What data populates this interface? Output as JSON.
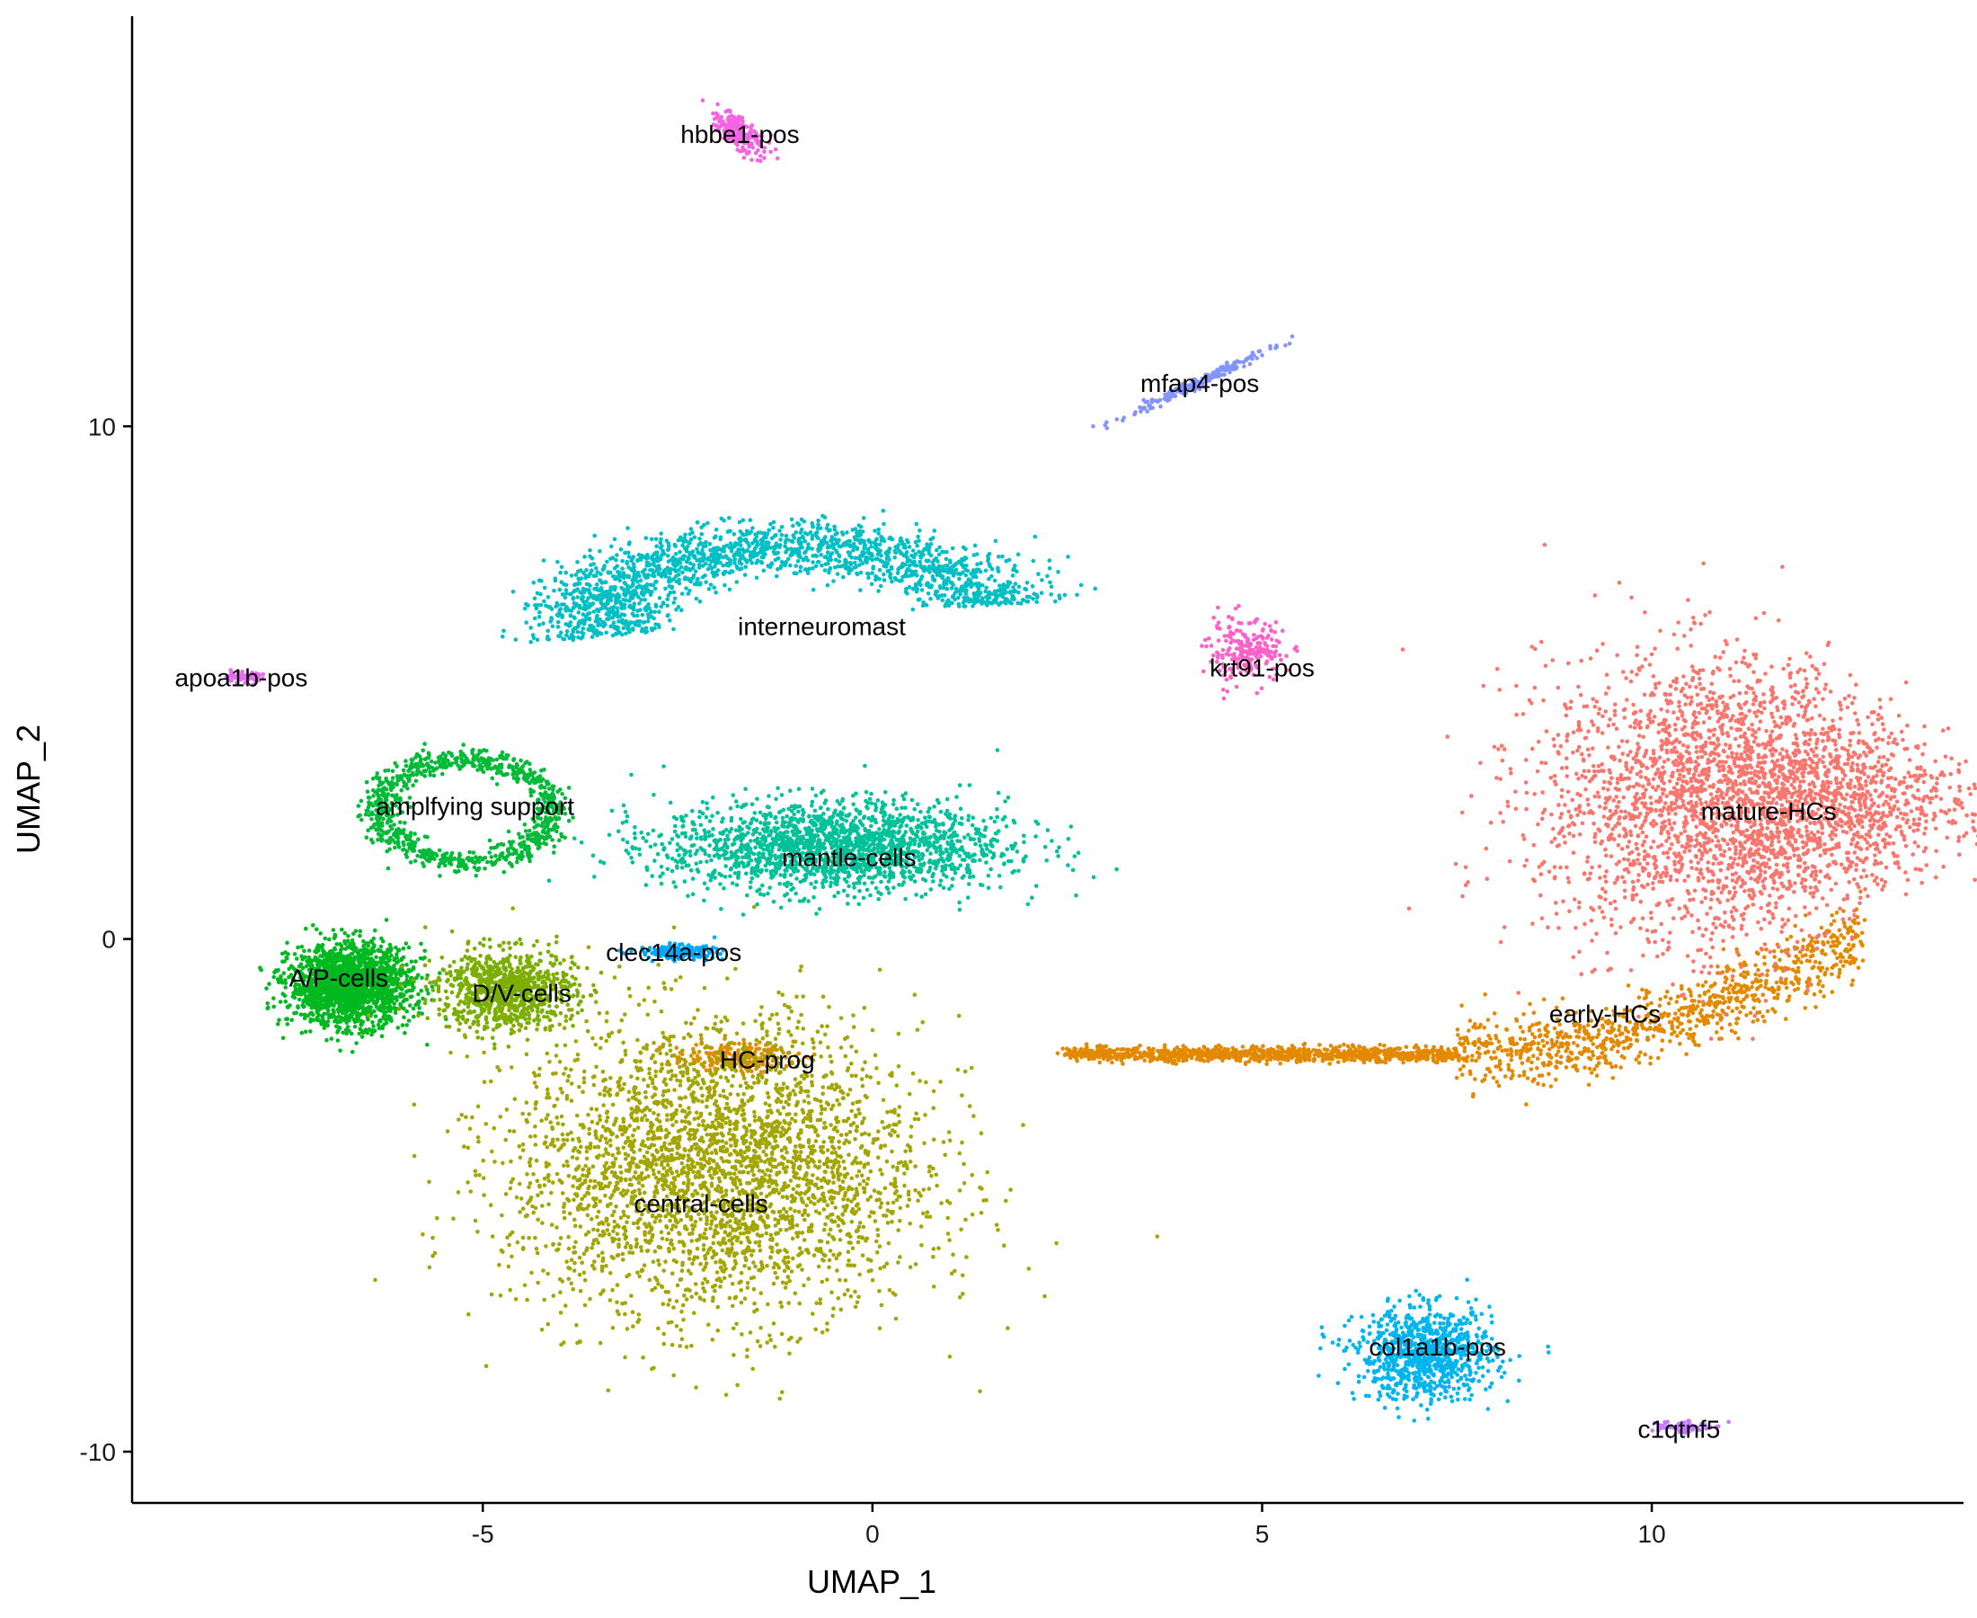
{
  "chart_data": {
    "type": "scatter",
    "title": "",
    "xlabel": "UMAP_1",
    "ylabel": "UMAP_2",
    "xlim": [
      -9.5,
      14
    ],
    "ylim": [
      -11,
      18
    ],
    "xticks": [
      "-5",
      "0",
      "5",
      "10"
    ],
    "xtick_values": [
      -5,
      0,
      5,
      10
    ],
    "yticks": [
      "-10",
      "0",
      "10"
    ],
    "ytick_values": [
      -10,
      0,
      10
    ],
    "grid": false,
    "legend": "none",
    "clusters": [
      {
        "name": "hbbe1-pos",
        "color": "#F564E3",
        "center": [
          -1.7,
          15.7
        ],
        "spread": [
          0.25,
          0.35
        ],
        "label_pos": [
          -1.7,
          15.7
        ],
        "shape": "streak",
        "angle_deg": -55,
        "density": "small"
      },
      {
        "name": "mfap4-pos",
        "color": "#8494FF",
        "center": [
          4.1,
          10.8
        ],
        "spread": [
          0.55,
          0.15
        ],
        "label_pos": [
          4.2,
          10.85
        ],
        "shape": "streak",
        "angle_deg": 35,
        "density": "small"
      },
      {
        "name": "krt91-pos",
        "color": "#FF61C9",
        "center": [
          4.8,
          5.6
        ],
        "spread": [
          0.45,
          0.55
        ],
        "label_pos": [
          5.0,
          5.3
        ],
        "shape": "blob",
        "angle_deg": 0,
        "density": "small"
      },
      {
        "name": "apoa1b-pos",
        "color": "#E76BF3",
        "center": [
          -8.1,
          5.1
        ],
        "spread": [
          0.25,
          0.1
        ],
        "label_pos": [
          -8.1,
          5.1
        ],
        "shape": "blob",
        "angle_deg": 0,
        "density": "tiny"
      },
      {
        "name": "interneuromast",
        "color": "#00BFC4",
        "center": [
          -1.0,
          6.2
        ],
        "spread": [
          2.6,
          1.6
        ],
        "label_pos": [
          -0.65,
          6.1
        ],
        "shape": "arc",
        "angle_deg": 0,
        "density": "large"
      },
      {
        "name": "mantle-cells",
        "color": "#00C19A",
        "center": [
          -0.5,
          1.8
        ],
        "spread": [
          2.0,
          0.8
        ],
        "label_pos": [
          -0.3,
          1.6
        ],
        "shape": "blob",
        "angle_deg": 0,
        "density": "large"
      },
      {
        "name": "amplfying support",
        "color": "#00BA38",
        "center": [
          -5.2,
          2.5
        ],
        "spread": [
          1.1,
          1.0
        ],
        "label_pos": [
          -5.1,
          2.6
        ],
        "shape": "loop",
        "angle_deg": 0,
        "density": "medium"
      },
      {
        "name": "A/P-cells",
        "color": "#00B81F",
        "center": [
          -6.7,
          -0.9
        ],
        "spread": [
          0.7,
          0.7
        ],
        "label_pos": [
          -6.85,
          -0.75
        ],
        "shape": "blob",
        "angle_deg": 0,
        "density": "large"
      },
      {
        "name": "D/V-cells",
        "color": "#7CAE00",
        "center": [
          -4.7,
          -1.0
        ],
        "spread": [
          0.8,
          0.7
        ],
        "label_pos": [
          -4.5,
          -1.05
        ],
        "shape": "blob",
        "angle_deg": 0,
        "density": "medium"
      },
      {
        "name": "clec14a-pos",
        "color": "#00A9FF",
        "center": [
          -2.5,
          -0.25
        ],
        "spread": [
          0.45,
          0.12
        ],
        "label_pos": [
          -2.55,
          -0.25
        ],
        "shape": "blob",
        "angle_deg": 0,
        "density": "small"
      },
      {
        "name": "HC-prog",
        "color": "#DE8C00",
        "center": [
          -1.8,
          -2.3
        ],
        "spread": [
          0.7,
          0.25
        ],
        "label_pos": [
          -1.35,
          -2.35
        ],
        "shape": "blob",
        "angle_deg": 0,
        "density": "small"
      },
      {
        "name": "central-cells",
        "color": "#A3A500",
        "center": [
          -2.0,
          -4.5
        ],
        "spread": [
          2.4,
          2.6
        ],
        "label_pos": [
          -2.2,
          -5.15
        ],
        "shape": "blob",
        "angle_deg": 0,
        "density": "huge"
      },
      {
        "name": "early-HCs",
        "color": "#E38900",
        "center": [
          7.5,
          -2.3
        ],
        "spread": [
          5.5,
          0.3
        ],
        "label_pos": [
          9.4,
          -1.45
        ],
        "shape": "tail",
        "angle_deg": 0,
        "density": "large"
      },
      {
        "name": "mature-HCs",
        "color": "#F8766D",
        "center": [
          11.2,
          2.7
        ],
        "spread": [
          1.3,
          1.4
        ],
        "label_pos": [
          11.5,
          2.5
        ],
        "shape": "fan",
        "angle_deg": 0,
        "density": "huge"
      },
      {
        "name": "col1a1b-pos",
        "color": "#00B4F0",
        "center": [
          7.1,
          -8.1
        ],
        "spread": [
          0.8,
          0.8
        ],
        "label_pos": [
          7.25,
          -7.95
        ],
        "shape": "blob",
        "angle_deg": 0,
        "density": "medium"
      },
      {
        "name": "c1qtnf5",
        "color": "#C77CFF",
        "center": [
          10.35,
          -9.5
        ],
        "spread": [
          0.35,
          0.12
        ],
        "label_pos": [
          10.35,
          -9.55
        ],
        "shape": "blob",
        "angle_deg": 0,
        "density": "tiny"
      }
    ]
  }
}
